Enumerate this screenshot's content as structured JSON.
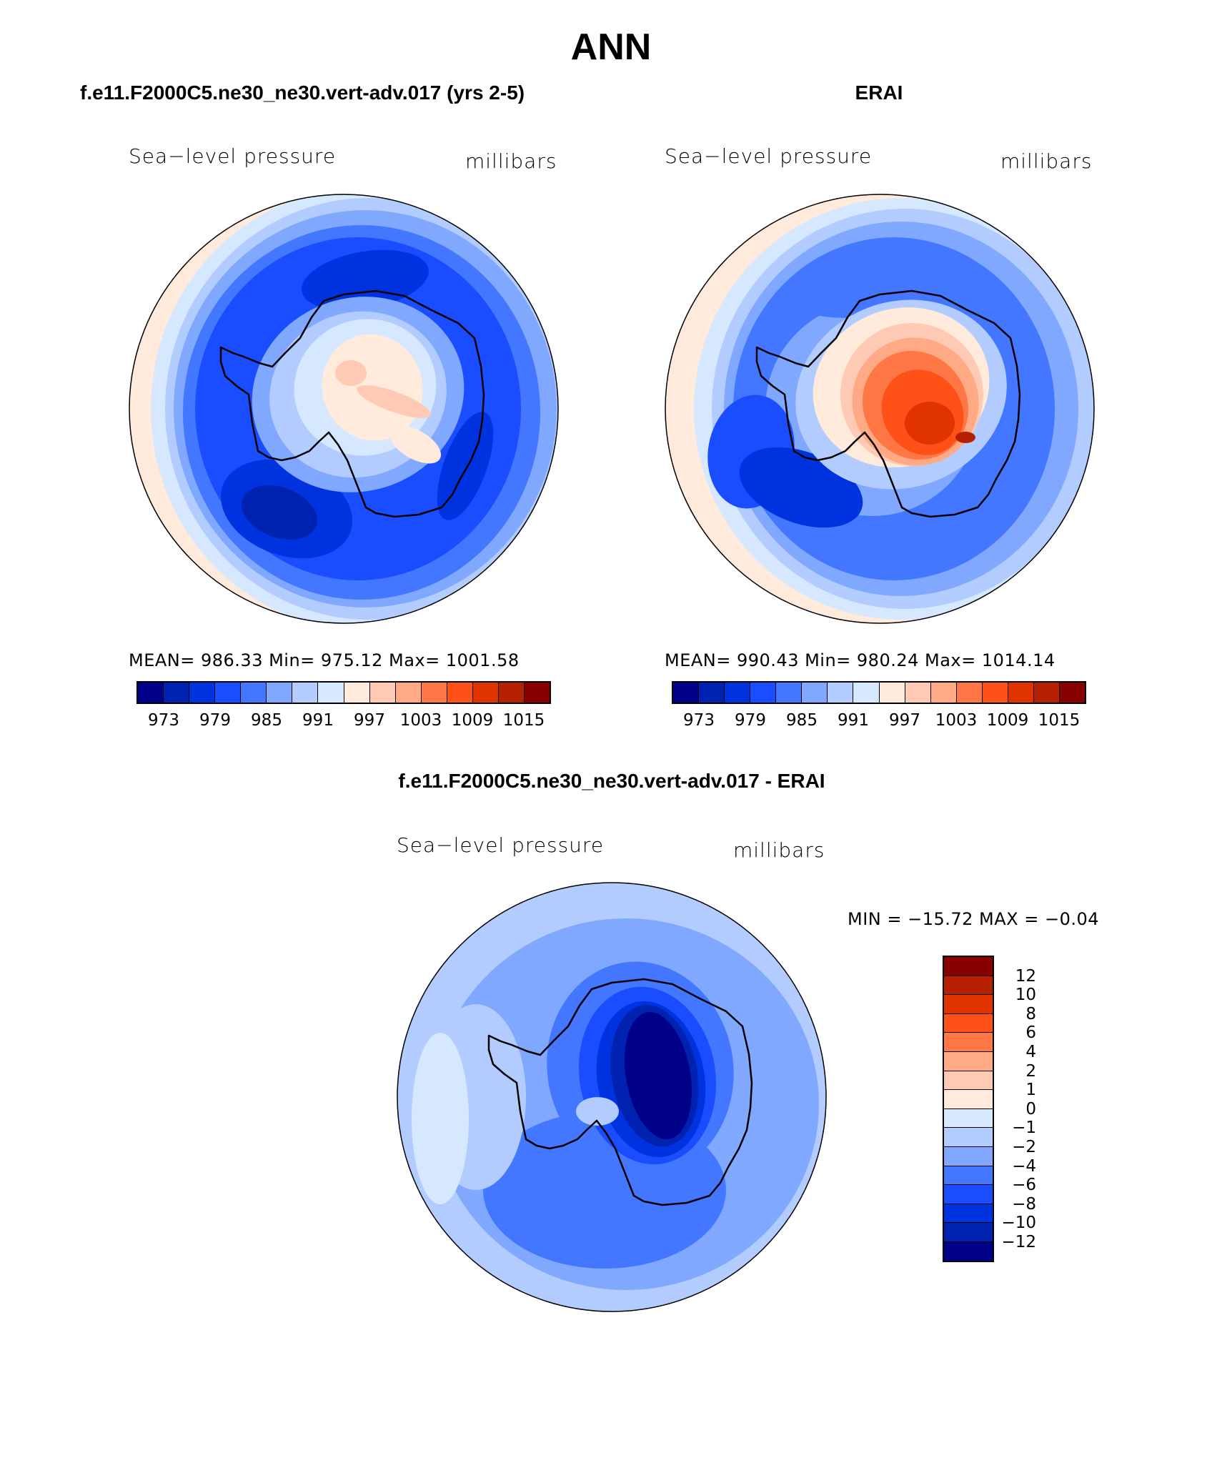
{
  "title": "ANN",
  "panels": [
    {
      "subtitle": "f.e11.F2000C5.ne30_ne30.vert-adv.017 (yrs 2-5)",
      "variable": "Sea−level pressure",
      "units": "millibars",
      "stats": "MEAN=  986.33   Min=  975.12   Max=  1001.58"
    },
    {
      "subtitle": "ERAI",
      "variable": "Sea−level pressure",
      "units": "millibars",
      "stats": "MEAN=  990.43   Min=  980.24   Max=  1014.14"
    },
    {
      "subtitle": "f.e11.F2000C5.ne30_ne30.vert-adv.017 - ERAI",
      "variable": "Sea−level pressure",
      "units": "millibars",
      "stats": "MIN = −15.72  MAX =  −0.04"
    }
  ],
  "chart_data": {
    "type": "heatmap",
    "projection": "south-polar-stereographic",
    "colors": [
      "#000088",
      "#0022b0",
      "#0033e0",
      "#1a4dff",
      "#4477ff",
      "#80a8ff",
      "#b3ccff",
      "#d6e8ff",
      "#ffeadb",
      "#ffcab3",
      "#ffaa85",
      "#ff7744",
      "#ff5018",
      "#e03300",
      "#b52000",
      "#880000"
    ],
    "abs_levels": [
      "973",
      "979",
      "985",
      "991",
      "997",
      "1003",
      "1009",
      "1015"
    ],
    "diff_levels": [
      "12",
      "10",
      "8",
      "6",
      "4",
      "2",
      "1",
      "0",
      "−1",
      "−2",
      "−4",
      "−6",
      "−8",
      "−10",
      "−12"
    ],
    "model": {
      "mean": 986.33,
      "min": 975.12,
      "max": 1001.58
    },
    "erai": {
      "mean": 990.43,
      "min": 980.24,
      "max": 1014.14
    },
    "difference": {
      "min": -15.72,
      "max": -0.04
    }
  }
}
